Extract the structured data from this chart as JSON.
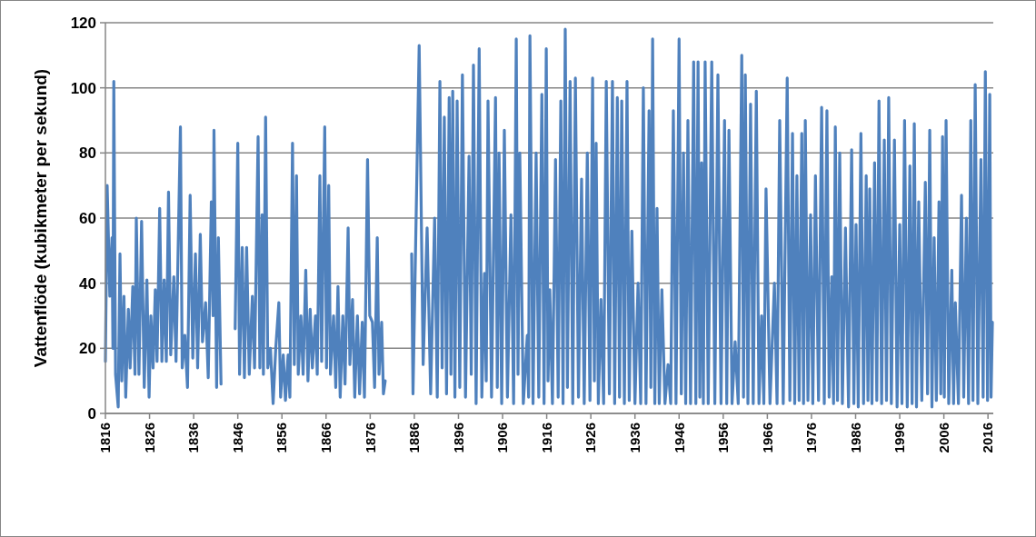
{
  "chart_data": {
    "type": "line",
    "ylabel": "Vattenflöde (kubikmeter per sekund)",
    "xlim": [
      1816,
      2017.2
    ],
    "xticks": [
      1816,
      1826,
      1836,
      1846,
      1856,
      1866,
      1876,
      1886,
      1896,
      1906,
      1916,
      1926,
      1936,
      1946,
      1956,
      1966,
      1976,
      1986,
      1996,
      2006,
      2016
    ],
    "ylim": [
      0,
      120
    ],
    "yticks": [
      0,
      20,
      40,
      60,
      80,
      100,
      120
    ],
    "grid": "y",
    "series": [
      {
        "color": "#4f81bd",
        "x": [
          1816.0,
          1816.4,
          1817.0,
          1817.5,
          1817.7,
          1817.9,
          1818.3,
          1818.9,
          1819.3,
          1819.7,
          1820.2,
          1820.6,
          1821.2,
          1821.6,
          1822.2,
          1822.7,
          1823.0,
          1823.6,
          1824.2,
          1824.8,
          1825.4,
          1825.9,
          1826.3,
          1826.8,
          1827.3,
          1827.7,
          1828.3,
          1828.8,
          1829.3,
          1829.8,
          1830.3,
          1830.8,
          1831.5,
          1832.0,
          1833.0,
          1833.4,
          1834.0,
          1834.6,
          1835.2,
          1835.8,
          1836.4,
          1836.9,
          1837.5,
          1838.0,
          1838.7,
          1839.3,
          1840.0,
          1840.4,
          1840.6,
          1841.2,
          1841.6,
          1842.2
        ],
        "values": [
          16,
          70,
          36,
          54,
          20,
          102,
          12,
          2,
          49,
          10,
          36,
          5,
          32,
          14,
          39,
          12,
          60,
          12,
          59,
          8,
          41,
          5,
          30,
          14,
          38,
          16,
          63,
          16,
          41,
          16,
          68,
          18,
          42,
          16,
          88,
          14,
          24,
          8,
          67,
          17,
          49,
          14,
          55,
          22,
          34,
          11,
          65,
          30,
          87,
          8,
          54,
          9
        ]
      },
      {
        "color": "#4f81bd",
        "x": [
          1845.4,
          1846.0,
          1846.4,
          1847.0,
          1847.5,
          1848.0,
          1848.6,
          1849.3,
          1849.8,
          1850.6,
          1851.0,
          1851.5,
          1851.8,
          1852.3,
          1852.8,
          1853.4,
          1854.0,
          1854.6,
          1855.3,
          1855.7,
          1856.3,
          1856.8,
          1857.4,
          1857.8,
          1858.4,
          1858.8,
          1859.3,
          1859.7,
          1860.3,
          1860.8,
          1861.4,
          1861.9,
          1862.4,
          1862.9,
          1863.6,
          1864.0,
          1864.6,
          1865.0,
          1865.7,
          1866.1,
          1866.6,
          1867.0,
          1867.7,
          1868.2,
          1868.7,
          1869.2,
          1869.8,
          1870.3,
          1871.0,
          1871.4,
          1872.0,
          1872.5,
          1873.1,
          1873.6,
          1874.2,
          1874.7,
          1875.4,
          1875.9,
          1876.5,
          1877.0,
          1877.6,
          1878.0,
          1878.6,
          1879.0,
          1879.4
        ],
        "values": [
          26,
          83,
          12,
          51,
          11,
          51,
          12,
          36,
          14,
          85,
          14,
          61,
          12,
          91,
          14,
          20,
          3,
          20,
          34,
          5,
          18,
          4,
          18,
          5,
          83,
          15,
          73,
          12,
          30,
          12,
          44,
          10,
          32,
          14,
          30,
          12,
          73,
          16,
          88,
          14,
          70,
          12,
          30,
          8,
          39,
          5,
          30,
          9,
          57,
          15,
          35,
          5,
          30,
          6,
          28,
          5,
          78,
          30,
          28,
          8,
          54,
          12,
          28,
          6,
          10
        ]
      },
      {
        "color": "#4f81bd",
        "x": [
          1885.4,
          1885.7,
          1887.1,
          1888.0,
          1888.9,
          1889.7,
          1890.6,
          1891.2,
          1891.8,
          1892.3,
          1892.8,
          1893.3,
          1893.9,
          1894.3,
          1894.7,
          1895.2,
          1895.7,
          1896.3,
          1896.9,
          1897.6,
          1898.4,
          1898.9,
          1899.4,
          1900.0,
          1900.7,
          1901.3,
          1901.9,
          1902.3,
          1902.7,
          1903.5,
          1904.4,
          1904.8,
          1905.2,
          1905.8,
          1906.4,
          1907.1,
          1907.9,
          1908.5,
          1909.1,
          1909.5,
          1909.9,
          1910.7,
          1911.6,
          1911.9,
          1912.2,
          1912.9,
          1913.6,
          1914.2,
          1914.9,
          1915.4,
          1915.9,
          1916.3,
          1916.7,
          1917.3,
          1918.0,
          1918.6,
          1919.2,
          1919.7,
          1920.2,
          1920.7,
          1921.3,
          1921.9,
          1922.5,
          1923.2,
          1923.9,
          1924.5,
          1925.2,
          1925.8,
          1926.4,
          1926.8,
          1927.2,
          1927.7,
          1928.3,
          1928.9,
          1929.5,
          1930.2,
          1930.9,
          1931.4,
          1932.0,
          1932.5,
          1933.0,
          1933.6,
          1934.2,
          1934.7,
          1935.3,
          1936.0,
          1936.7,
          1937.3,
          1937.9,
          1938.5,
          1939.2,
          1939.6,
          1940.0,
          1940.5,
          1941.0,
          1941.5,
          1942.1,
          1942.8,
          1943.5,
          1944.1,
          1944.7,
          1945.3,
          1946.0,
          1946.5,
          1947.0,
          1947.5,
          1948.0,
          1948.6,
          1949.3,
          1949.8,
          1950.3,
          1950.7,
          1951.1,
          1951.5,
          1951.9,
          1952.6,
          1953.4,
          1954.1,
          1954.8,
          1955.5,
          1956.3,
          1956.8,
          1957.3,
          1958.0,
          1958.7,
          1959.4,
          1960.2,
          1960.6,
          1961.0,
          1961.6,
          1962.2,
          1962.8,
          1963.5,
          1964.1,
          1964.7,
          1965.2,
          1965.7,
          1966.6,
          1967.6,
          1968.2,
          1968.8,
          1969.6,
          1970.5,
          1971.1,
          1971.7,
          1972.2,
          1972.7,
          1973.2,
          1973.8,
          1974.2,
          1974.6,
          1975.2,
          1975.8,
          1976.3,
          1976.9,
          1977.6,
          1978.3,
          1978.9,
          1979.5,
          1980.0,
          1980.6,
          1981.0,
          1981.4,
          1981.9,
          1982.4,
          1983.0,
          1983.7,
          1984.4,
          1985.1,
          1985.6,
          1986.1,
          1986.6,
          1987.2,
          1987.8,
          1988.4,
          1988.8,
          1989.2,
          1989.7,
          1990.3,
          1990.8,
          1991.3,
          1991.9,
          1992.5,
          1993.0,
          1993.5,
          1994.1,
          1994.8,
          1995.4,
          1996.0,
          1996.5,
          1997.1,
          1997.7,
          1998.3,
          1998.8,
          1999.3,
          1999.8,
          2000.3,
          2001.0,
          2001.8,
          2002.3,
          2002.8,
          2003.3,
          2003.8,
          2004.3,
          2004.9,
          2005.3,
          2005.7,
          2006.1,
          2006.5,
          2007.1,
          2007.8,
          2008.2,
          2008.6,
          2009.3,
          2010.0,
          2010.5,
          2011.1,
          2011.6,
          2012.1,
          2012.6,
          2013.1,
          2013.7,
          2014.4,
          2014.9,
          2015.4,
          2015.9,
          2016.4,
          2016.7,
          2017.0
        ],
        "values": [
          49,
          6,
          113,
          15,
          57,
          6,
          60,
          5,
          102,
          14,
          91,
          6,
          97,
          12,
          99,
          5,
          96,
          8,
          104,
          5,
          79,
          12,
          107,
          3,
          112,
          5,
          43,
          10,
          96,
          5,
          97,
          8,
          80,
          3,
          87,
          5,
          61,
          3,
          115,
          12,
          80,
          3,
          24,
          5,
          116,
          3,
          80,
          5,
          98,
          3,
          112,
          10,
          38,
          3,
          78,
          5,
          96,
          3,
          118,
          8,
          102,
          3,
          103,
          5,
          72,
          3,
          80,
          4,
          103,
          10,
          83,
          3,
          35,
          3,
          102,
          6,
          102,
          3,
          97,
          5,
          96,
          3,
          102,
          4,
          56,
          3,
          40,
          3,
          100,
          3,
          93,
          8,
          115,
          3,
          63,
          3,
          38,
          3,
          15,
          3,
          93,
          3,
          115,
          6,
          80,
          3,
          90,
          3,
          108,
          3,
          108,
          5,
          77,
          3,
          108,
          3,
          108,
          3,
          104,
          3,
          90,
          3,
          87,
          3,
          22,
          3,
          110,
          5,
          104,
          3,
          95,
          3,
          99,
          3,
          30,
          3,
          69,
          3,
          40,
          3,
          90,
          3,
          103,
          4,
          86,
          3,
          73,
          4,
          86,
          3,
          90,
          4,
          61,
          3,
          73,
          4,
          94,
          3,
          93,
          5,
          42,
          3,
          88,
          4,
          80,
          3,
          57,
          2,
          81,
          3,
          58,
          2,
          86,
          3,
          73,
          4,
          69,
          3,
          77,
          4,
          96,
          3,
          84,
          4,
          97,
          3,
          84,
          2,
          58,
          3,
          90,
          2,
          76,
          3,
          89,
          2,
          65,
          4,
          71,
          6,
          87,
          2,
          54,
          4,
          65,
          6,
          85,
          5,
          90,
          3,
          44,
          3,
          34,
          3,
          67,
          5,
          60,
          3,
          90,
          4,
          101,
          3,
          78,
          5,
          105,
          4,
          98,
          5,
          28
        ]
      }
    ]
  }
}
